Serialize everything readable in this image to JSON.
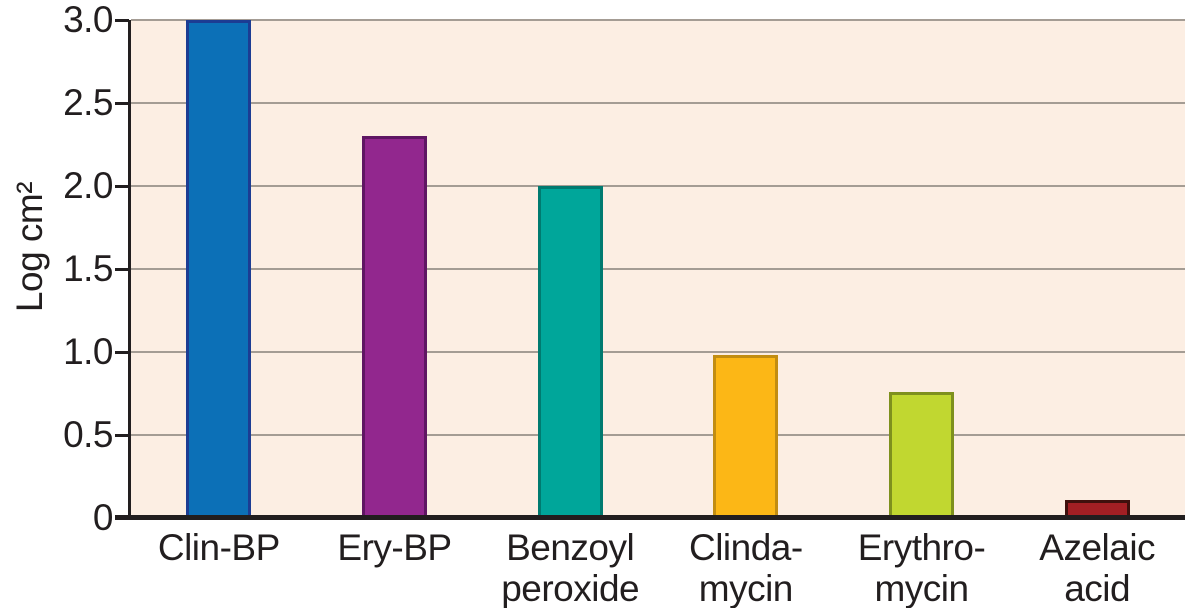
{
  "chart_data": {
    "type": "bar",
    "title": "",
    "xlabel": "",
    "ylabel": "Log cm²",
    "categories": [
      "Clin-BP",
      "Ery-BP",
      "Benzoyl\nperoxide",
      "Clinda-\nmycin",
      "Erythro-\nmycin",
      "Azelaic\nacid"
    ],
    "values": [
      3.0,
      2.3,
      2.0,
      0.98,
      0.76,
      0.11
    ],
    "bar_colors": [
      "#0c70b7",
      "#92278e",
      "#00a69a",
      "#fcb716",
      "#c1d730",
      "#a21f24"
    ],
    "bar_border_colors": [
      "#1c3c93",
      "#5f1663",
      "#007a70",
      "#c28d12",
      "#7e901d",
      "#3f100d"
    ],
    "ylim": [
      0,
      3.0
    ],
    "yticks": [
      0,
      0.5,
      1.0,
      1.5,
      2.0,
      2.5,
      3.0
    ],
    "ytick_labels": [
      "0",
      "0.5",
      "1.0",
      "1.5",
      "2.0",
      "2.5",
      "3.0"
    ],
    "grid": true,
    "legend": "none",
    "plot_background": "#fceee3",
    "gridline_color": "#a49c94",
    "axis_color": "#221e1f",
    "text_color": "#221e1f"
  }
}
